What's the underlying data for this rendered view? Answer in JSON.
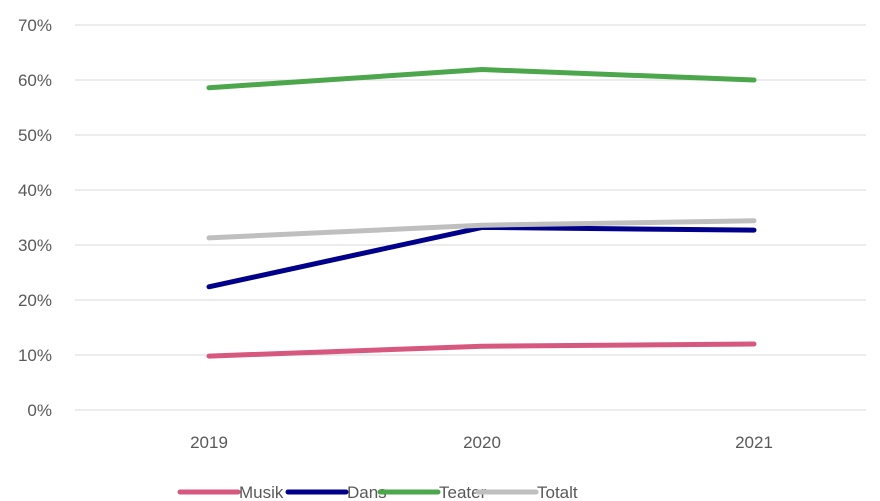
{
  "chart_data": {
    "type": "line",
    "title": "",
    "xlabel": "",
    "ylabel": "",
    "categories": [
      "2019",
      "2020",
      "2021"
    ],
    "ylim": [
      0,
      70
    ],
    "y_ticks": [
      "0%",
      "10%",
      "20%",
      "30%",
      "40%",
      "50%",
      "60%",
      "70%"
    ],
    "grid": true,
    "legend_position": "bottom",
    "series": [
      {
        "name": "Musik",
        "color": "#d6587e",
        "values": [
          9.8,
          11.6,
          12.0
        ]
      },
      {
        "name": "Dans",
        "color": "#00008b",
        "values": [
          22.4,
          33.2,
          32.7
        ]
      },
      {
        "name": "Teater",
        "color": "#4ca64c",
        "values": [
          58.6,
          61.9,
          60.0
        ]
      },
      {
        "name": "Totalt",
        "color": "#bfbfbf",
        "values": [
          31.3,
          33.6,
          34.4
        ]
      }
    ]
  }
}
